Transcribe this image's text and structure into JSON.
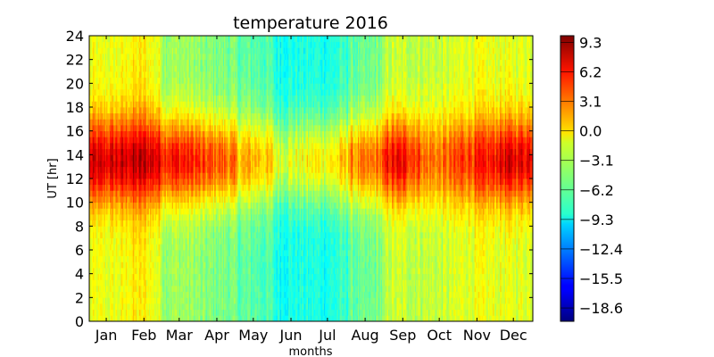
{
  "chart_data": {
    "type": "heatmap",
    "title": "temperature 2016",
    "xlabel": "months",
    "ylabel": "UT [hr]",
    "x_tick_labels": [
      "Jan",
      "Feb",
      "Mar",
      "Apr",
      "May",
      "Jun",
      "Jul",
      "Aug",
      "Sep",
      "Oct",
      "Nov",
      "Dec"
    ],
    "x_range_days": [
      1,
      366
    ],
    "ylim": [
      0,
      24
    ],
    "y_ticks": [
      0,
      2,
      4,
      6,
      8,
      10,
      12,
      14,
      16,
      18,
      20,
      22,
      24
    ],
    "colorbar": {
      "colormap": "jet",
      "range": [
        -20.0,
        10.0
      ],
      "ticks": [
        "9.3",
        "6.2",
        "3.1",
        "0.0",
        "−3.1",
        "−6.2",
        "−9.3",
        "−12.4",
        "−15.5",
        "−18.6"
      ],
      "tick_values": [
        9.3,
        6.2,
        3.1,
        0.0,
        -3.1,
        -6.2,
        -9.3,
        -12.4,
        -15.5,
        -18.6
      ]
    },
    "daily_temperature_profile": {
      "description_month": [
        "Jan",
        "Feb",
        "Mar",
        "Apr",
        "May",
        "Jun",
        "Jul",
        "Aug",
        "Sep",
        "Oct",
        "Nov",
        "Dec"
      ],
      "daytime_peak_by_month": [
        7,
        8,
        6,
        4,
        1,
        -2,
        -1,
        2,
        6,
        3,
        5,
        7
      ],
      "night_min_by_month": [
        -2,
        -1,
        -4,
        -5,
        -6,
        -8,
        -8,
        -6,
        -3,
        -3,
        -2,
        -2
      ],
      "peak_hours_ut": [
        12,
        15
      ]
    }
  }
}
